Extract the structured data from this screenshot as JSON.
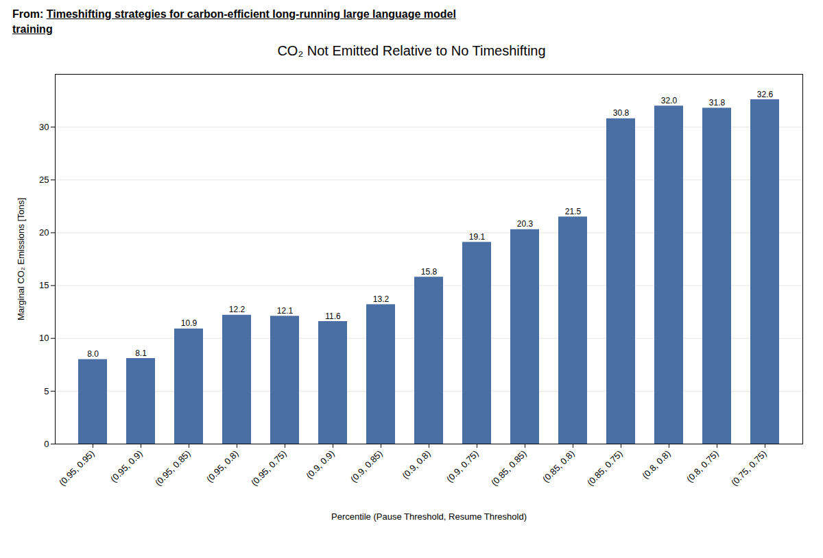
{
  "chart_data": {
    "type": "bar",
    "title": "CO₂ Not Emitted Relative to No Timeshifting",
    "annotations": [
      "From: ",
      "Timeshifting strategies for carbon-efficient long-running large language model",
      "training"
    ],
    "xlabel": "Percentile (Pause Threshold, Resume Threshold)",
    "ylabel": "Marginal CO₂ Emissions [Tons]",
    "categories": [
      "(0.95, 0.95)",
      "(0.95, 0.9)",
      "(0.95, 0.85)",
      "(0.95, 0.8)",
      "(0.95, 0.75)",
      "(0.9, 0.9)",
      "(0.9, 0.85)",
      "(0.9, 0.8)",
      "(0.9, 0.75)",
      "(0.85, 0.85)",
      "(0.85, 0.8)",
      "(0.85, 0.75)",
      "(0.8, 0.8)",
      "(0.8, 0.75)",
      "(0.75, 0.75)"
    ],
    "values": [
      8.0,
      8.1,
      10.9,
      12.2,
      12.1,
      11.6,
      13.2,
      15.8,
      19.1,
      20.3,
      21.5,
      30.8,
      32.0,
      31.8,
      32.6
    ],
    "value_labels": [
      "8.0",
      "8.1",
      "10.9",
      "12.2",
      "12.1",
      "11.6",
      "13.2",
      "15.8",
      "19.1",
      "20.3",
      "21.5",
      "30.8",
      "32.0",
      "31.8",
      "32.6"
    ],
    "data_labels": true,
    "color": "#4a6fa5",
    "ylim": [
      0,
      35
    ],
    "yticks": [
      0,
      5,
      10,
      15,
      20,
      25,
      30
    ],
    "grid": true
  }
}
